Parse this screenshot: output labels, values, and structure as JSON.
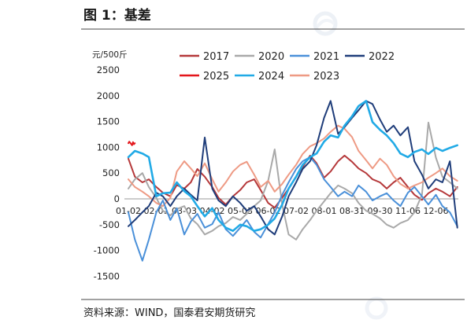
{
  "chart_data": {
    "type": "line",
    "title": "图 1：基差",
    "xlabel": "",
    "ylabel": "元/500斤",
    "ylim": [
      -1500,
      2500
    ],
    "y_ticks": [
      2500,
      2000,
      1500,
      1000,
      500,
      0,
      -500,
      -1000,
      -1500
    ],
    "x_ticks": [
      "01-02",
      "02-01",
      "03-03",
      "04-02",
      "05-03",
      "06-02",
      "07-02",
      "08-01",
      "08-31",
      "09-30",
      "11-06",
      "12-06"
    ],
    "x_axis_crosses_at": 0,
    "grid": false,
    "legend_position": "top",
    "x": [
      "01-02",
      "01-09",
      "01-17",
      "01-24",
      "02-01",
      "02-08",
      "02-16",
      "02-23",
      "03-03",
      "03-10",
      "03-17",
      "03-25",
      "04-02",
      "04-09",
      "04-17",
      "04-25",
      "05-03",
      "05-10",
      "05-18",
      "05-25",
      "06-02",
      "06-09",
      "06-17",
      "06-24",
      "07-02",
      "07-09",
      "07-17",
      "07-24",
      "08-01",
      "08-08",
      "08-16",
      "08-23",
      "08-31",
      "09-07",
      "09-15",
      "09-22",
      "09-30",
      "10-09",
      "10-18",
      "10-27",
      "11-06",
      "11-13",
      "11-21",
      "11-28",
      "12-06",
      "12-13",
      "12-21",
      "12-29"
    ],
    "series": [
      {
        "name": "2017",
        "color": "#b5383a",
        "values": [
          780,
          430,
          320,
          380,
          230,
          120,
          50,
          270,
          200,
          320,
          580,
          430,
          230,
          20,
          -110,
          50,
          170,
          320,
          380,
          170,
          -80,
          -170,
          20,
          200,
          430,
          620,
          840,
          690,
          410,
          530,
          730,
          840,
          720,
          590,
          500,
          380,
          320,
          200,
          320,
          410,
          230,
          80,
          -20,
          110,
          200,
          140,
          50,
          230
        ]
      },
      {
        "name": "2020",
        "color": "#a9a9a9",
        "values": [
          200,
          380,
          500,
          230,
          20,
          -230,
          -320,
          -200,
          -140,
          -380,
          -490,
          -690,
          -620,
          -530,
          -470,
          -350,
          -410,
          -290,
          -140,
          -30,
          350,
          960,
          -110,
          -690,
          -790,
          -590,
          -410,
          -230,
          -50,
          110,
          260,
          200,
          110,
          -80,
          -230,
          -290,
          -380,
          -500,
          -560,
          -470,
          -410,
          -260,
          80,
          1480,
          800,
          430,
          320,
          200
        ]
      },
      {
        "name": "2021",
        "color": "#4a90d9",
        "values": [
          -260,
          -790,
          -1200,
          -790,
          -260,
          -30,
          -410,
          -180,
          -690,
          -440,
          -290,
          -560,
          -490,
          -260,
          -590,
          -720,
          -560,
          -410,
          -640,
          -750,
          -490,
          -260,
          80,
          320,
          580,
          730,
          810,
          660,
          380,
          230,
          50,
          140,
          50,
          260,
          140,
          -30,
          50,
          110,
          -30,
          -140,
          120,
          230,
          50,
          -110,
          80,
          -140,
          -260,
          -530
        ]
      },
      {
        "name": "2022",
        "color": "#1f3d7a",
        "values": [
          -530,
          -410,
          -260,
          -140,
          120,
          50,
          -140,
          50,
          200,
          80,
          -30,
          1190,
          200,
          -30,
          -140,
          50,
          -80,
          -230,
          -140,
          -340,
          -590,
          -690,
          -340,
          50,
          320,
          580,
          730,
          1040,
          1570,
          1900,
          1260,
          1390,
          1570,
          1720,
          1900,
          1840,
          1540,
          1300,
          1420,
          1230,
          1390,
          730,
          470,
          200,
          380,
          320,
          730,
          -560
        ]
      },
      {
        "name": "2025",
        "color": "#e3161b",
        "x": [
          "01-02",
          "01-03",
          "01-06",
          "01-07",
          "01-08",
          "01-09"
        ],
        "values": [
          1080,
          1110,
          1040,
          1100,
          1060,
          1080
        ]
      },
      {
        "name": "2024",
        "color": "#21aae6",
        "values": [
          810,
          930,
          880,
          810,
          50,
          110,
          120,
          320,
          150,
          50,
          -140,
          -340,
          -180,
          -410,
          -560,
          -620,
          -500,
          -530,
          -620,
          -590,
          -500,
          -380,
          -110,
          200,
          430,
          660,
          810,
          880,
          1110,
          1230,
          1190,
          1420,
          1600,
          1800,
          1900,
          1490,
          1340,
          1230,
          1080,
          880,
          810,
          910,
          960,
          870,
          990,
          930,
          990,
          1040
        ]
      },
      {
        "name": "2023",
        "color": "#ee9a84",
        "values": [
          380,
          230,
          140,
          50,
          -80,
          -140,
          20,
          530,
          730,
          590,
          440,
          690,
          380,
          140,
          320,
          530,
          660,
          720,
          470,
          230,
          350,
          140,
          290,
          470,
          660,
          870,
          1020,
          1080,
          1170,
          1300,
          1420,
          1360,
          1200,
          930,
          750,
          590,
          780,
          660,
          440,
          290,
          200,
          260,
          320,
          410,
          500,
          590,
          440,
          350
        ]
      }
    ]
  },
  "source_note": "资料来源：WIND，国泰君安期货研究"
}
